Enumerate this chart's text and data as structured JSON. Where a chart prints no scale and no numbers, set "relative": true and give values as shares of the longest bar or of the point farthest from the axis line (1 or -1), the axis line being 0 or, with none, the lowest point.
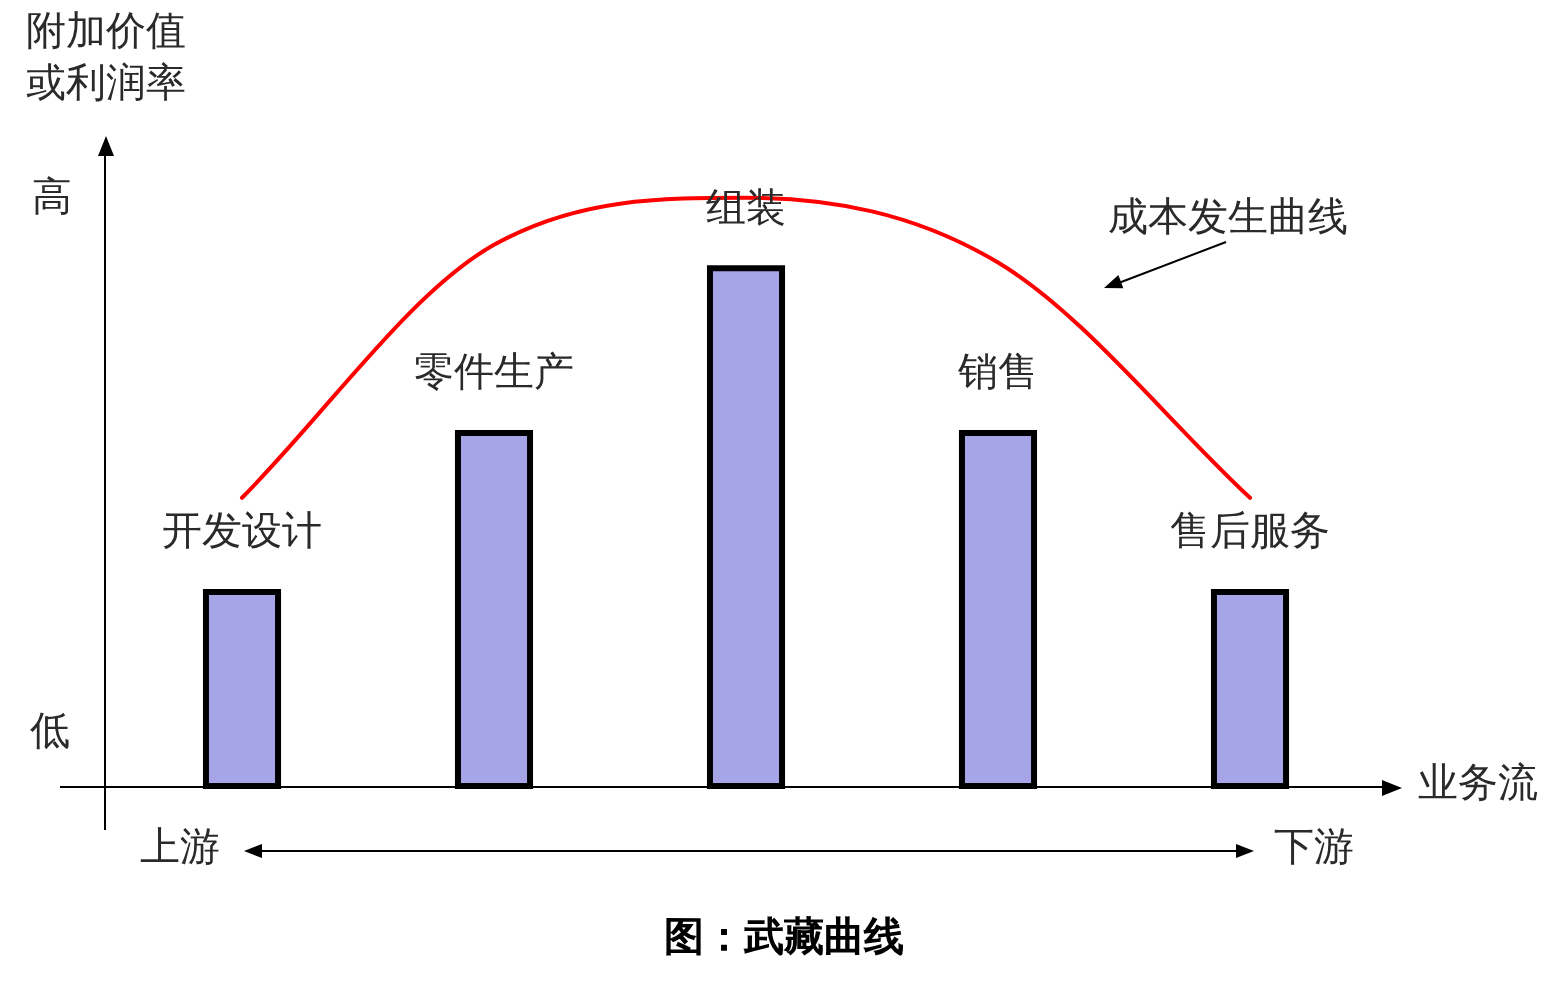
{
  "chart_data": {
    "type": "bar",
    "title": "图：武藏曲线",
    "xlabel": "业务流",
    "ylabel": "附加价值或利润率",
    "categories": [
      "开发设计",
      "零件生产",
      "组装",
      "销售",
      "售后服务"
    ],
    "relative": true,
    "marker": "none",
    "line_style": "solid",
    "series": [
      {
        "color": "#a5a5e8",
        "values": [
          0.33,
          0.6,
          0.88,
          0.6,
          0.33
        ]
      },
      {
        "type": "line",
        "name": "成本发生曲线",
        "color": "#ff0000",
        "values": [
          0.49,
          0.92,
          1,
          0.89,
          0.49
        ]
      }
    ],
    "annotations": [
      "高",
      "低",
      "上游",
      "下游"
    ]
  }
}
